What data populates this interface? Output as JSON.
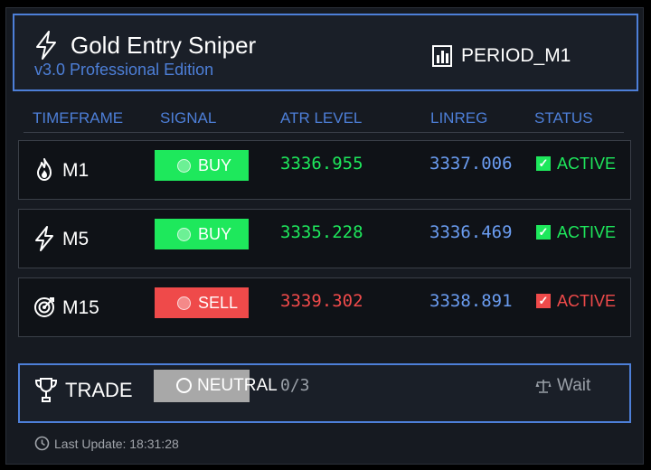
{
  "header": {
    "title": "Gold Entry Sniper",
    "subtitle": "v3.0 Professional Edition",
    "period": "PERIOD_M1"
  },
  "columns": {
    "timeframe": "TIMEFRAME",
    "signal": "SIGNAL",
    "atr": "ATR LEVEL",
    "linreg": "LINREG",
    "status": "STATUS"
  },
  "rows": [
    {
      "timeframe": "M1",
      "icon": "flame-icon",
      "signal": "BUY",
      "atr": "3336.955",
      "linreg": "3337.006",
      "status": "ACTIVE",
      "signal_color": "#1ee85c"
    },
    {
      "timeframe": "M5",
      "icon": "lightning-icon",
      "signal": "BUY",
      "atr": "3335.228",
      "linreg": "3336.469",
      "status": "ACTIVE",
      "signal_color": "#1ee85c"
    },
    {
      "timeframe": "M15",
      "icon": "target-icon",
      "signal": "SELL",
      "atr": "3339.302",
      "linreg": "3338.891",
      "status": "ACTIVE",
      "signal_color": "#ef4a4a"
    }
  ],
  "trade": {
    "label": "TRADE",
    "signal": "NEUTRAL",
    "count": "0/3",
    "status": "Wait"
  },
  "footer": {
    "last_update": "Last Update: 18:31:28"
  },
  "colors": {
    "accent": "#4d7fd8",
    "buy": "#1ee85c",
    "sell": "#ef4a4a",
    "linreg": "#6a9cf0",
    "neutral": "#a8a8a8"
  }
}
